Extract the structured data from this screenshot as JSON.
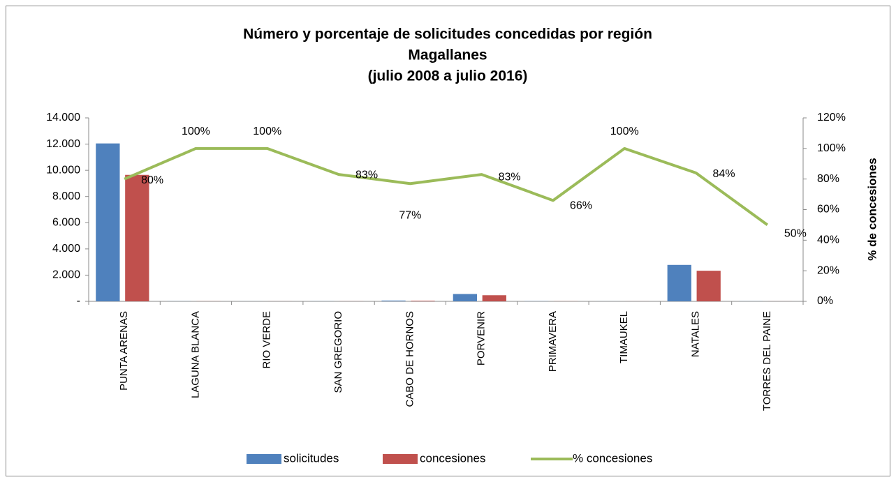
{
  "chart_data": {
    "type": "bar_line",
    "title": "Número y porcentaje de solicitudes concedidas por región",
    "subtitle": "Magallanes",
    "subtitle2": "(julio 2008 a julio 2016)",
    "y2_label": "% de concesiones",
    "categories": [
      "PUNTA ARENAS",
      "LAGUNA BLANCA",
      "RIO VERDE",
      "SAN GREGORIO",
      "CABO DE HORNOS",
      "PORVENIR",
      "PRIMAVERA",
      "TIMAUKEL",
      "NATALES",
      "TORRES DEL PAINE"
    ],
    "series": [
      {
        "name": "solicitudes",
        "color": "#4f81bd",
        "values": [
          12050,
          10,
          5,
          10,
          60,
          560,
          15,
          5,
          2780,
          10
        ]
      },
      {
        "name": "concesiones",
        "color": "#c0504d",
        "values": [
          9650,
          10,
          5,
          8,
          46,
          465,
          10,
          5,
          2335,
          5
        ]
      },
      {
        "name": "% concesiones",
        "color": "#9bbb59",
        "axis": "y2",
        "values": [
          80,
          100,
          100,
          83,
          77,
          83,
          66,
          100,
          84,
          50
        ],
        "value_labels": [
          "80%",
          "100%",
          "100%",
          "83%",
          "77%",
          "83%",
          "66%",
          "100%",
          "84%",
          "50%"
        ]
      }
    ],
    "ylim": [
      0,
      14000
    ],
    "yticks": [
      {
        "value": 0,
        "label": "-"
      },
      {
        "value": 2000,
        "label": "2.000"
      },
      {
        "value": 4000,
        "label": "4.000"
      },
      {
        "value": 6000,
        "label": "6.000"
      },
      {
        "value": 8000,
        "label": "8.000"
      },
      {
        "value": 10000,
        "label": "10.000"
      },
      {
        "value": 12000,
        "label": "12.000"
      },
      {
        "value": 14000,
        "label": "14.000"
      }
    ],
    "y2lim": [
      0,
      120
    ],
    "y2ticks": [
      {
        "value": 0,
        "label": "0%"
      },
      {
        "value": 20,
        "label": "20%"
      },
      {
        "value": 40,
        "label": "40%"
      },
      {
        "value": 60,
        "label": "60%"
      },
      {
        "value": 80,
        "label": "80%"
      },
      {
        "value": 100,
        "label": "100%"
      },
      {
        "value": 120,
        "label": "120%"
      }
    ],
    "grid": false,
    "legend": "bottom"
  }
}
